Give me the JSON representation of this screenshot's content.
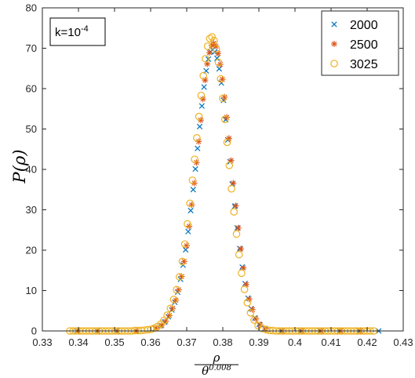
{
  "chart_data": {
    "type": "scatter",
    "title": "",
    "annotation": {
      "base": "k=10",
      "exponent": "-4"
    },
    "ylabel": "P(ρ)",
    "xlabel": {
      "numerator": "ρ",
      "denominator_base": "θ",
      "denominator_exponent": "0.008"
    },
    "xlim": [
      0.33,
      0.43
    ],
    "ylim": [
      0,
      80
    ],
    "xticks": [
      0.33,
      0.34,
      0.35,
      0.36,
      0.37,
      0.38,
      0.39,
      0.4,
      0.41,
      0.42,
      0.43
    ],
    "xtick_labels": [
      "0.33",
      "0.34",
      "0.35",
      "0.36",
      "0.37",
      "0.38",
      "0.39",
      "0.4",
      "0.41",
      "0.42",
      "0.43"
    ],
    "yticks": [
      0,
      10,
      20,
      30,
      40,
      50,
      60,
      70,
      80
    ],
    "ytick_labels": [
      "0",
      "10",
      "20",
      "30",
      "40",
      "50",
      "60",
      "70",
      "80"
    ],
    "grid": false,
    "legend_position": "top-right",
    "series": [
      {
        "name": "2000",
        "marker": "x",
        "color": "#0072BD",
        "x": [
          0.3396,
          0.3451,
          0.3505,
          0.3559,
          0.3613,
          0.3628,
          0.3639,
          0.3649,
          0.3659,
          0.3667,
          0.3675,
          0.3683,
          0.369,
          0.3697,
          0.3704,
          0.3711,
          0.3718,
          0.3724,
          0.373,
          0.3736,
          0.3742,
          0.3748,
          0.3754,
          0.376,
          0.3766,
          0.3772,
          0.3778,
          0.3784,
          0.379,
          0.3796,
          0.3802,
          0.3808,
          0.3814,
          0.382,
          0.3826,
          0.3833,
          0.384,
          0.3847,
          0.3854,
          0.3862,
          0.387,
          0.3879,
          0.3889,
          0.3901,
          0.3916,
          0.3962,
          0.4016,
          0.407,
          0.4124,
          0.4178,
          0.4232
        ],
        "y": [
          0.0,
          0.0,
          0.0,
          0.0,
          0.6,
          1.3,
          2.2,
          3.5,
          5.2,
          7.1,
          9.6,
          12.8,
          16.3,
          20.1,
          24.6,
          29.8,
          35.0,
          40.1,
          45.2,
          50.6,
          55.7,
          60.4,
          64.4,
          67.3,
          69.1,
          69.6,
          69.1,
          67.5,
          64.9,
          61.4,
          57.1,
          52.3,
          47.3,
          41.9,
          36.4,
          30.9,
          25.5,
          20.4,
          15.8,
          11.7,
          8.1,
          5.5,
          3.2,
          1.6,
          0.6,
          0.0,
          0.0,
          0.0,
          0.0,
          0.0,
          0.0
        ]
      },
      {
        "name": "2500",
        "marker": "asterisk",
        "color": "#D95319",
        "x": [
          0.3399,
          0.3454,
          0.3508,
          0.3562,
          0.3616,
          0.3631,
          0.3642,
          0.3652,
          0.3661,
          0.367,
          0.3678,
          0.3686,
          0.3693,
          0.37,
          0.3707,
          0.3714,
          0.3721,
          0.3727,
          0.3733,
          0.3739,
          0.3745,
          0.3751,
          0.3757,
          0.3763,
          0.3769,
          0.3775,
          0.3781,
          0.3787,
          0.3793,
          0.3799,
          0.3805,
          0.3811,
          0.3817,
          0.3823,
          0.3829,
          0.3836,
          0.3843,
          0.385,
          0.3857,
          0.3865,
          0.3873,
          0.3882,
          0.3892,
          0.3904,
          0.3919,
          0.3965,
          0.4019,
          0.4073,
          0.4127,
          0.4181
        ],
        "y": [
          0.0,
          0.0,
          0.0,
          0.0,
          0.7,
          1.4,
          2.4,
          3.8,
          5.6,
          7.6,
          10.2,
          13.5,
          17.2,
          21.1,
          25.9,
          31.2,
          36.6,
          41.7,
          46.9,
          52.2,
          57.4,
          62.1,
          66.1,
          68.9,
          70.7,
          71.2,
          70.5,
          68.7,
          66.0,
          62.3,
          57.9,
          52.9,
          47.7,
          42.2,
          36.6,
          31.0,
          25.5,
          20.3,
          15.6,
          11.5,
          7.9,
          5.3,
          3.0,
          1.5,
          0.5,
          0.0,
          0.0,
          0.0,
          0.0,
          0.0
        ]
      },
      {
        "name": "3025",
        "marker": "circle",
        "color": "#EDB120",
        "x": [
          0.3376,
          0.3385,
          0.3394,
          0.3403,
          0.3412,
          0.3421,
          0.343,
          0.3439,
          0.3448,
          0.3457,
          0.3466,
          0.3475,
          0.3484,
          0.3493,
          0.3502,
          0.3511,
          0.352,
          0.3529,
          0.3538,
          0.3547,
          0.3556,
          0.3565,
          0.3574,
          0.3583,
          0.3592,
          0.3601,
          0.361,
          0.3619,
          0.3628,
          0.3637,
          0.3646,
          0.3655,
          0.3664,
          0.3672,
          0.368,
          0.3688,
          0.3695,
          0.3702,
          0.3709,
          0.3716,
          0.3722,
          0.3728,
          0.3734,
          0.374,
          0.3746,
          0.3752,
          0.3758,
          0.3764,
          0.377,
          0.3776,
          0.3782,
          0.3788,
          0.3794,
          0.38,
          0.3806,
          0.3812,
          0.3818,
          0.3824,
          0.3831,
          0.3838,
          0.3845,
          0.3852,
          0.386,
          0.3868,
          0.3877,
          0.3887,
          0.3898,
          0.391,
          0.3921,
          0.393,
          0.3939,
          0.3948,
          0.3957,
          0.3966,
          0.3975,
          0.3984,
          0.3993,
          0.4002,
          0.4011,
          0.402,
          0.4029,
          0.4038,
          0.4047,
          0.4056,
          0.4065,
          0.4074,
          0.4083,
          0.4092,
          0.4101,
          0.411,
          0.4119,
          0.4128,
          0.4137,
          0.4146,
          0.4155,
          0.4164,
          0.4173,
          0.4182,
          0.4191,
          0.42,
          0.4209,
          0.4218
        ],
        "y": [
          0.0,
          0.0,
          0.0,
          0.0,
          0.0,
          0.0,
          0.0,
          0.0,
          0.0,
          0.0,
          0.0,
          0.0,
          0.0,
          0.0,
          0.0,
          0.0,
          0.0,
          0.0,
          0.0,
          0.0,
          0.1,
          0.1,
          0.1,
          0.2,
          0.3,
          0.4,
          0.7,
          1.1,
          1.7,
          2.6,
          3.9,
          5.6,
          7.8,
          10.2,
          13.4,
          17.2,
          21.5,
          26.5,
          31.6,
          37.3,
          42.5,
          47.8,
          53.1,
          58.3,
          63.2,
          67.4,
          70.5,
          72.4,
          72.8,
          71.9,
          69.8,
          66.5,
          62.4,
          57.6,
          52.4,
          46.7,
          41.0,
          35.2,
          29.5,
          24.0,
          18.9,
          14.3,
          10.3,
          7.0,
          4.5,
          2.7,
          1.3,
          0.6,
          0.3,
          0.1,
          0.1,
          0.0,
          0.0,
          0.0,
          0.0,
          0.0,
          0.0,
          0.0,
          0.0,
          0.0,
          0.0,
          0.0,
          0.0,
          0.0,
          0.0,
          0.0,
          0.0,
          0.0,
          0.0,
          0.0,
          0.0,
          0.0,
          0.0,
          0.0,
          0.0,
          0.0,
          0.0,
          0.0,
          0.0,
          0.0,
          0.0,
          0.0
        ]
      }
    ]
  }
}
